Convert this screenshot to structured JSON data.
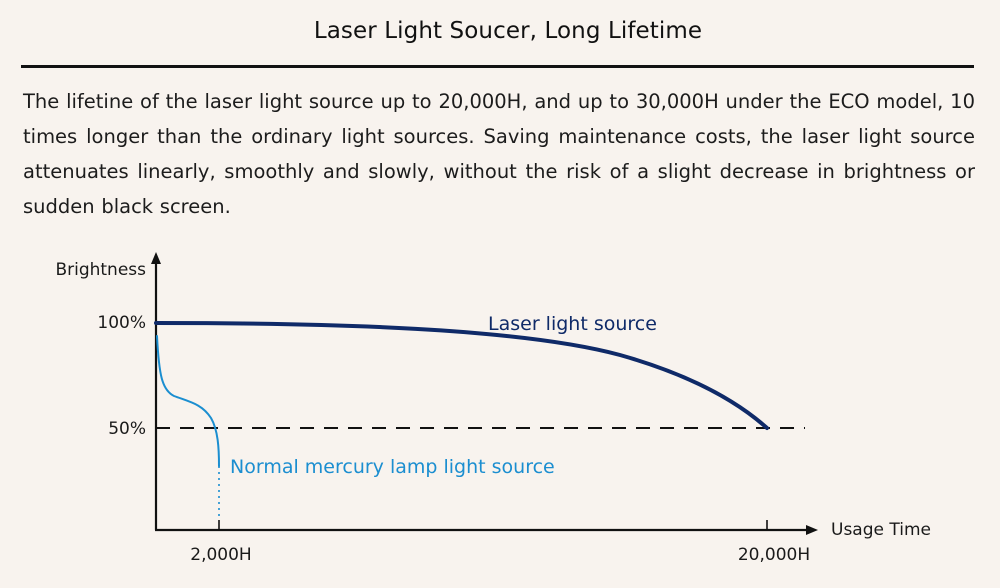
{
  "title": "Laser Light Soucer, Long Lifetime",
  "description": "The lifetine of the laser light source up to 20,000H, and up to 30,000H under the ECO model, 10 times longer than the ordinary light sources. Saving maintenance costs,  the laser light source attenuates linearly, smoothly and slowly, without the risk of a slight decrease in brightness or sudden black screen.",
  "colors": {
    "background": "#f8f3ee",
    "laser": "#0f2a68",
    "mercury": "#1b8ed0",
    "axis": "#111111"
  },
  "chart_data": {
    "type": "line",
    "ylabel": "Brightness",
    "xlabel": "Usage Time",
    "y_ticks": [
      "100%",
      "50%"
    ],
    "x_ticks": [
      "2,000H",
      "20,000H"
    ],
    "threshold_label_value": 50,
    "series": [
      {
        "name": "Laser light source",
        "x": [
          0,
          5000,
          10000,
          15000,
          20000
        ],
        "y": [
          100,
          99,
          94,
          80,
          50
        ]
      },
      {
        "name": "Normal mercury lamp light source",
        "x": [
          0,
          250,
          1000,
          1600,
          2000
        ],
        "y": [
          100,
          75,
          67,
          58,
          33
        ]
      }
    ]
  }
}
